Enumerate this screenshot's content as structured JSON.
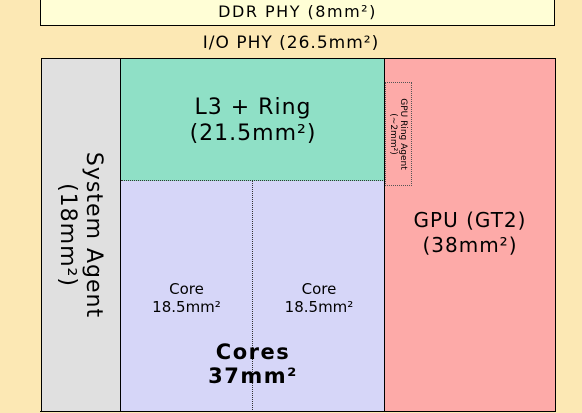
{
  "blocks": {
    "ddr_phy": {
      "label": "DDR PHY (8mm²)"
    },
    "io_phy": {
      "label": "I/O PHY (26.5mm²)"
    },
    "system_agent": {
      "name": "System Agent",
      "area": "(18mm²)"
    },
    "l3_ring": {
      "name": "L3 + Ring",
      "area": "(21.5mm²)"
    },
    "core_1": {
      "name": "Core",
      "area": "18.5mm²"
    },
    "core_2": {
      "name": "Core",
      "area": "18.5mm²"
    },
    "cores": {
      "name": "Cores",
      "area": "37mm²"
    },
    "gpu": {
      "name": "GPU (GT2)",
      "area": "(38mm²)"
    },
    "gpu_ring_agent": {
      "name": "GPU Ring Agent",
      "area": "(~2mm²)"
    }
  },
  "colors": {
    "io_background": "#fce8b4",
    "ddr_phy": "#fffed6",
    "system_agent": "#e0e0e0",
    "l3_ring": "#8fe0c6",
    "cores": "#d6d6f8",
    "gpu": "#fdaaa8"
  }
}
